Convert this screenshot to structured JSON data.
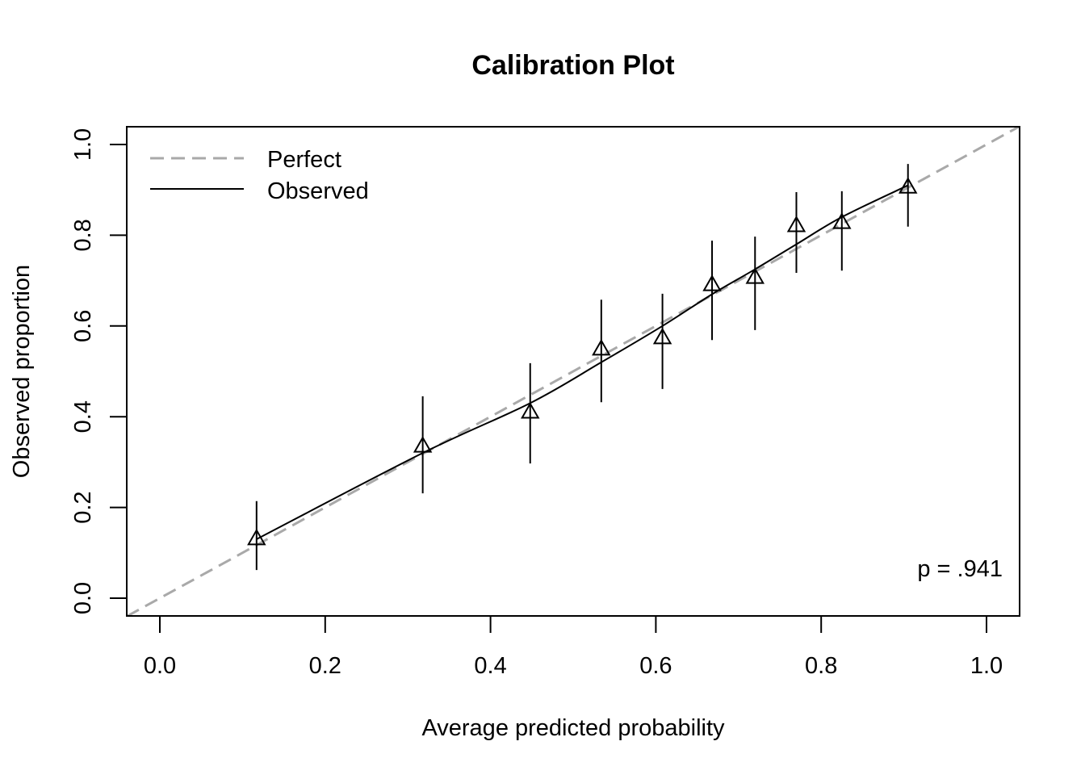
{
  "chart_data": {
    "type": "scatter",
    "title": "Calibration Plot",
    "xlabel": "Average predicted probability",
    "ylabel": "Observed proportion",
    "xlim": [
      -0.04,
      1.04
    ],
    "ylim": [
      -0.04,
      1.04
    ],
    "xticks": [
      "0.0",
      "0.2",
      "0.4",
      "0.6",
      "0.8",
      "1.0"
    ],
    "yticks": [
      "0.0",
      "0.2",
      "0.4",
      "0.6",
      "0.8",
      "1.0"
    ],
    "grid": false,
    "legend": {
      "placement": "top-left",
      "entries": [
        {
          "label": "Perfect",
          "style": "dashed",
          "color": "#a9a9a9"
        },
        {
          "label": "Observed",
          "style": "solid",
          "color": "#000000"
        }
      ]
    },
    "annotation": "p = .941",
    "perfect_line": {
      "x": [
        0,
        1
      ],
      "y": [
        0,
        1
      ],
      "color": "#a9a9a9"
    },
    "observed_curve": {
      "x": [
        0.117,
        0.318,
        0.448,
        0.534,
        0.608,
        0.668,
        0.72,
        0.77,
        0.825,
        0.905
      ],
      "y": [
        0.13,
        0.32,
        0.43,
        0.52,
        0.6,
        0.67,
        0.725,
        0.78,
        0.84,
        0.91
      ]
    },
    "points": {
      "marker": "triangle",
      "x": [
        0.117,
        0.318,
        0.448,
        0.534,
        0.608,
        0.668,
        0.72,
        0.77,
        0.825,
        0.905
      ],
      "y": [
        0.132,
        0.336,
        0.411,
        0.55,
        0.575,
        0.692,
        0.708,
        0.822,
        0.829,
        0.907
      ],
      "lower": [
        0.062,
        0.231,
        0.297,
        0.432,
        0.461,
        0.569,
        0.591,
        0.717,
        0.722,
        0.819
      ],
      "upper": [
        0.214,
        0.445,
        0.518,
        0.658,
        0.671,
        0.788,
        0.797,
        0.895,
        0.897,
        0.957
      ]
    }
  }
}
